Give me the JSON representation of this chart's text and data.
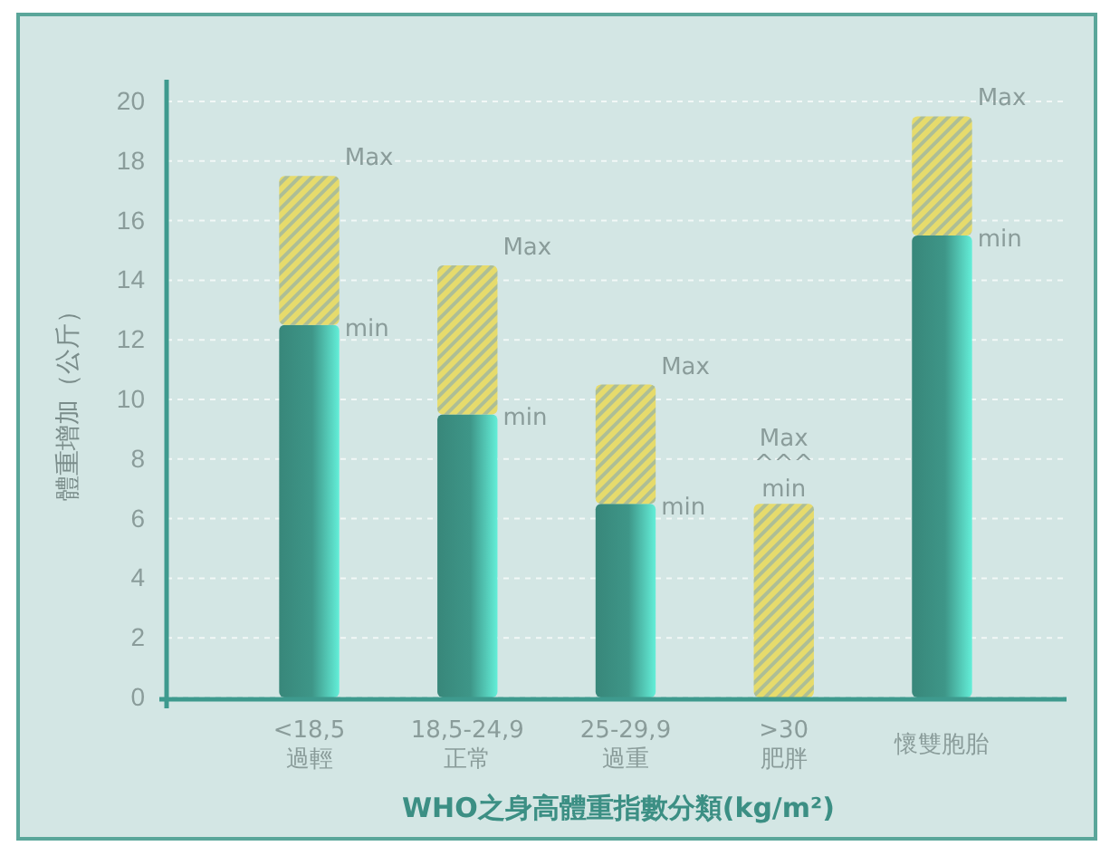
{
  "chart_data": {
    "type": "bar",
    "stacked": true,
    "xlabel": "WHO之身高體重指數分類(kg/m²)",
    "ylabel": "體重增加（公斤）",
    "categories": [
      "<18,5\n過輕",
      "18,5-24,9\n正常",
      "25-29,9\n過重",
      ">30\n肥胖",
      "懷雙胞胎"
    ],
    "series": [
      {
        "color": "#3e9688",
        "values": [
          12.5,
          9.5,
          6.5,
          0,
          15.5
        ]
      },
      {
        "color": "#e6db6c",
        "values": [
          5,
          5,
          4,
          6.5,
          4
        ]
      }
    ],
    "ylim": [
      0,
      20
    ],
    "yticks": [
      0,
      2,
      4,
      6,
      8,
      10,
      12,
      14,
      16,
      18,
      20
    ],
    "grid": "y",
    "annotations": [
      {
        "text": "Max",
        "x": "<18,5\n過輕",
        "y": 17.5
      },
      {
        "text": "min",
        "x": "<18,5\n過輕",
        "y": 12.5
      },
      {
        "text": "Max",
        "x": "18,5-24,9\n正常",
        "y": 14.5
      },
      {
        "text": "min",
        "x": "18,5-24,9\n正常",
        "y": 9.5
      },
      {
        "text": "Max",
        "x": "25-29,9\n過重",
        "y": 10.5
      },
      {
        "text": "min",
        "x": "25-29,9\n過重",
        "y": 6.5
      },
      {
        "text": "Max\n^^^\nmin",
        "x": ">30\n肥胖",
        "y": 6.5
      },
      {
        "text": "Max",
        "x": "懷雙胞胎",
        "y": 19.5
      },
      {
        "text": "min",
        "x": "懷雙胞胎",
        "y": 15.5
      }
    ]
  }
}
